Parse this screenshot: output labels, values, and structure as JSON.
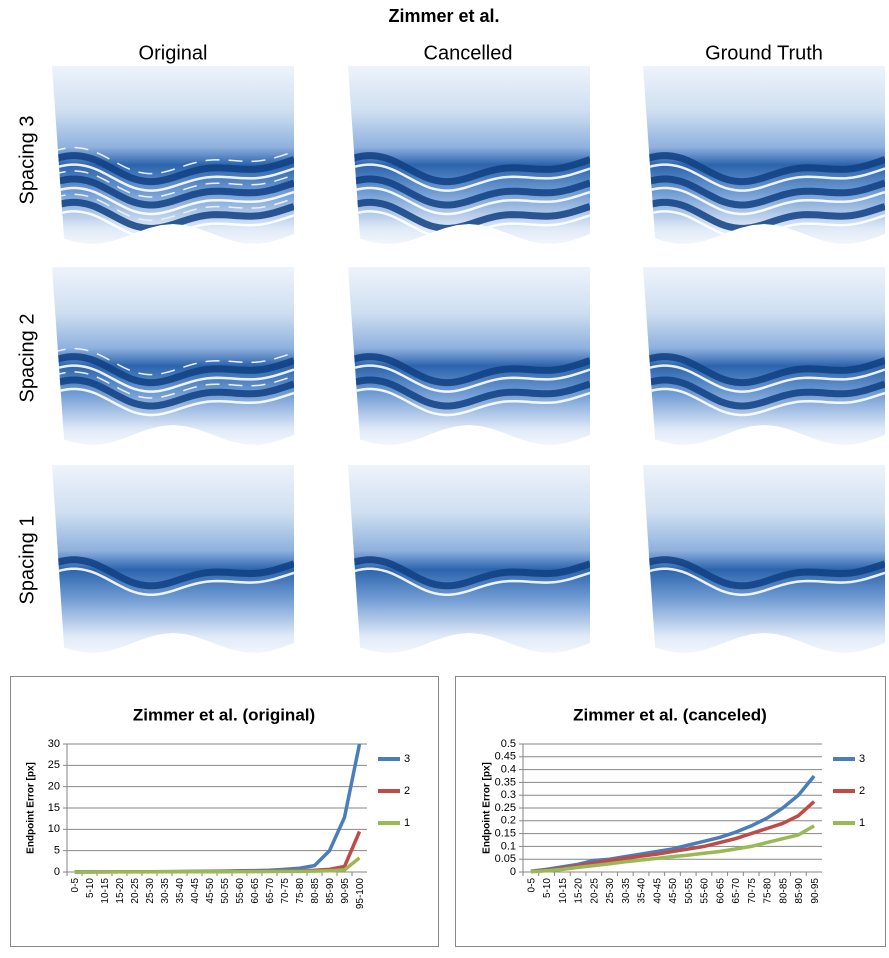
{
  "header": {
    "title": "Zimmer et al.",
    "columns": [
      "Original",
      "Cancelled",
      "Ground Truth"
    ],
    "rows": [
      "Spacing 3",
      "Spacing 2",
      "Spacing 1"
    ]
  },
  "chart_data": [
    {
      "type": "line",
      "title": "Zimmer et al. (original)",
      "y_label": "Endpoint Error [px]",
      "categories": [
        "0-5",
        "5-10",
        "10-15",
        "15-20",
        "20-25",
        "25-30",
        "30-35",
        "35-40",
        "40-45",
        "45-50",
        "50-55",
        "55-60",
        "60-65",
        "65-70",
        "70-75",
        "75-80",
        "80-85",
        "85-90",
        "90-95",
        "95-100"
      ],
      "ylim": [
        0,
        30
      ],
      "yticks": [
        0,
        5,
        10,
        15,
        20,
        25,
        30
      ],
      "grid": true,
      "legend": "right",
      "series": [
        {
          "name": "3",
          "color": "#4a7ebb",
          "values": [
            0.02,
            0.03,
            0.04,
            0.05,
            0.06,
            0.08,
            0.1,
            0.12,
            0.15,
            0.18,
            0.22,
            0.27,
            0.32,
            0.4,
            0.6,
            0.9,
            1.5,
            5,
            12.8,
            30
          ]
        },
        {
          "name": "2",
          "color": "#be4b48",
          "values": [
            0.01,
            0.02,
            0.03,
            0.04,
            0.05,
            0.06,
            0.07,
            0.08,
            0.1,
            0.12,
            0.14,
            0.16,
            0.18,
            0.2,
            0.25,
            0.3,
            0.4,
            0.6,
            1.3,
            9.5
          ]
        },
        {
          "name": "1",
          "color": "#98b954",
          "values": [
            0.01,
            0.01,
            0.02,
            0.02,
            0.03,
            0.03,
            0.04,
            0.05,
            0.06,
            0.07,
            0.08,
            0.09,
            0.1,
            0.11,
            0.13,
            0.15,
            0.2,
            0.3,
            0.5,
            3.3
          ]
        }
      ]
    },
    {
      "type": "line",
      "title": "Zimmer et al. (canceled)",
      "y_label": "Endpoint Error [px]",
      "categories": [
        "0-5",
        "5-10",
        "10-15",
        "15-20",
        "20-25",
        "25-30",
        "30-35",
        "35-40",
        "40-45",
        "45-50",
        "50-55",
        "55-60",
        "60-65",
        "65-70",
        "70-75",
        "75-80",
        "80-85",
        "85-90",
        "90-95"
      ],
      "ylim": [
        0,
        0.5
      ],
      "yticks": [
        0,
        0.05,
        0.1,
        0.15,
        0.2,
        0.25,
        0.3,
        0.35,
        0.4,
        0.45,
        0.5
      ],
      "grid": true,
      "legend": "right",
      "series": [
        {
          "name": "3",
          "color": "#4a7ebb",
          "values": [
            0.003,
            0.01,
            0.02,
            0.03,
            0.045,
            0.05,
            0.06,
            0.07,
            0.08,
            0.09,
            0.105,
            0.12,
            0.135,
            0.155,
            0.18,
            0.21,
            0.25,
            0.3,
            0.375
          ]
        },
        {
          "name": "2",
          "color": "#be4b48",
          "values": [
            0.002,
            0.008,
            0.015,
            0.025,
            0.035,
            0.045,
            0.053,
            0.062,
            0.07,
            0.08,
            0.09,
            0.1,
            0.115,
            0.13,
            0.15,
            0.17,
            0.19,
            0.22,
            0.275
          ]
        },
        {
          "name": "1",
          "color": "#98b954",
          "values": [
            0.001,
            0.005,
            0.01,
            0.018,
            0.025,
            0.032,
            0.04,
            0.047,
            0.053,
            0.06,
            0.066,
            0.073,
            0.08,
            0.09,
            0.1,
            0.115,
            0.13,
            0.145,
            0.18
          ]
        }
      ]
    }
  ]
}
